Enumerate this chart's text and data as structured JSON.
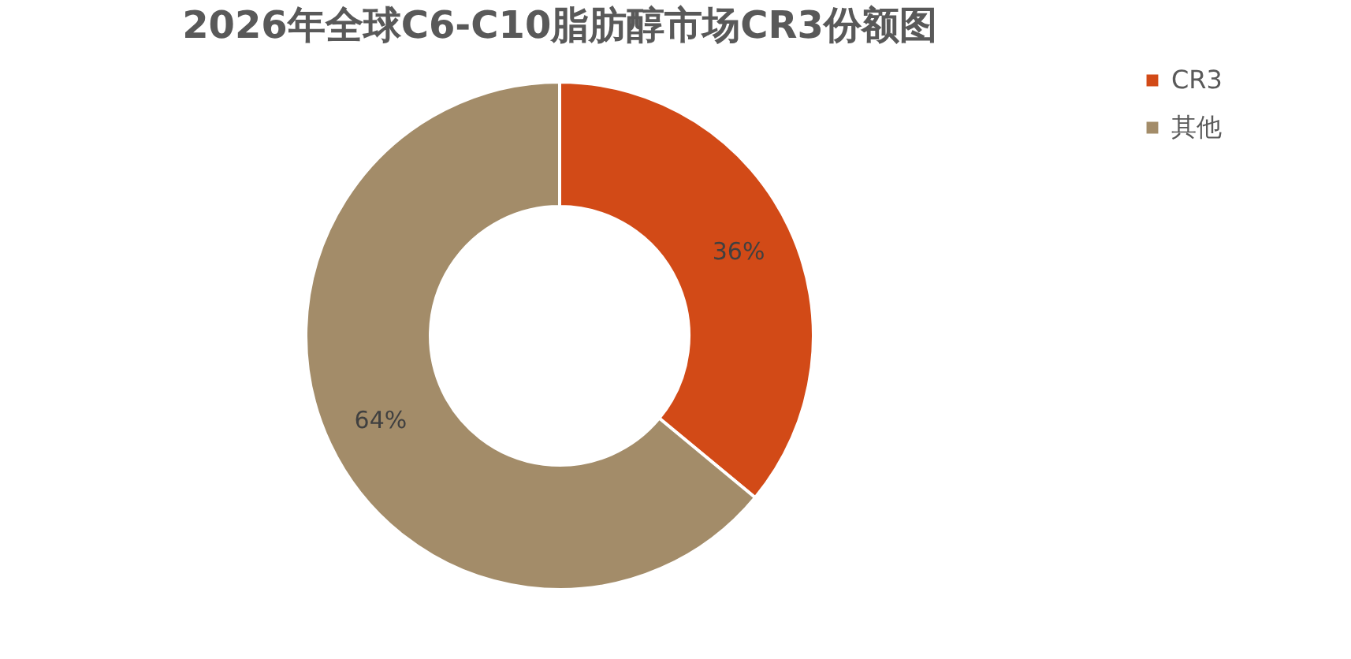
{
  "chart_data": {
    "type": "donut",
    "title": "2026年全球C6-C10脂肪醇市场CR3份额图",
    "categories": [
      "CR3",
      "其他"
    ],
    "values": [
      36,
      64
    ],
    "colors": [
      "#d24a17",
      "#a38c69"
    ],
    "value_labels": [
      "36%",
      "64%"
    ],
    "legend": "right"
  }
}
